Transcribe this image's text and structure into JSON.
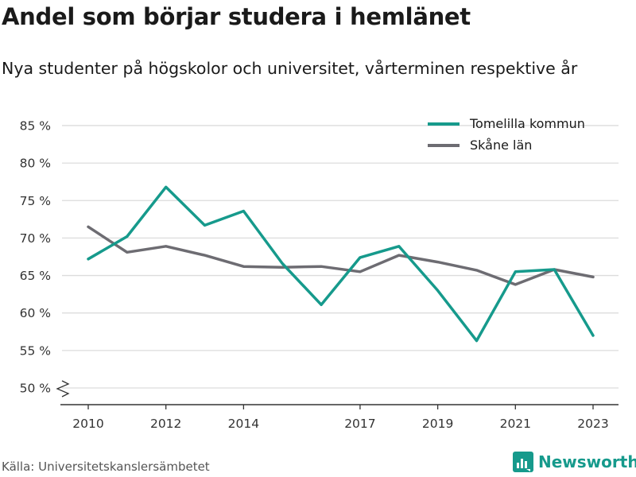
{
  "header": {
    "title": "Andel som börjar studera i hemlänet",
    "subtitle": "Nya studenter på högskolor och universitet, vårterminen respektive år"
  },
  "footer": {
    "source": "Källa: Universitetskanslersämbetet",
    "brand": "Newsworthy"
  },
  "colors": {
    "tomelilla": "#169a8c",
    "skane": "#6d6c72",
    "grid": "#dcdcdc",
    "axis": "#333333"
  },
  "chart_data": {
    "type": "line",
    "x": [
      2010,
      2011,
      2012,
      2013,
      2014,
      2015,
      2016,
      2017,
      2018,
      2019,
      2020,
      2021,
      2022,
      2023
    ],
    "x_tick_labels": [
      "2010",
      "2012",
      "2014",
      "2017",
      "2019",
      "2021",
      "2023"
    ],
    "y_ticks": [
      50,
      55,
      60,
      65,
      70,
      75,
      80,
      85
    ],
    "y_tick_labels": [
      "50 %",
      "55 %",
      "60 %",
      "65 %",
      "70 %",
      "75 %",
      "80 %",
      "85 %"
    ],
    "ylim": [
      48,
      86
    ],
    "y_axis_break": true,
    "grid": true,
    "legend_position": "top-right",
    "series": [
      {
        "name": "Tomelilla kommun",
        "values": [
          67.2,
          70.2,
          76.8,
          71.7,
          73.6,
          66.6,
          61.1,
          67.4,
          68.9,
          63.0,
          56.3,
          65.5,
          65.8,
          57.0
        ]
      },
      {
        "name": "Skåne län",
        "values": [
          71.5,
          68.1,
          68.9,
          67.7,
          66.2,
          66.1,
          66.2,
          65.5,
          67.7,
          66.8,
          65.7,
          63.8,
          65.8,
          64.8
        ]
      }
    ]
  }
}
